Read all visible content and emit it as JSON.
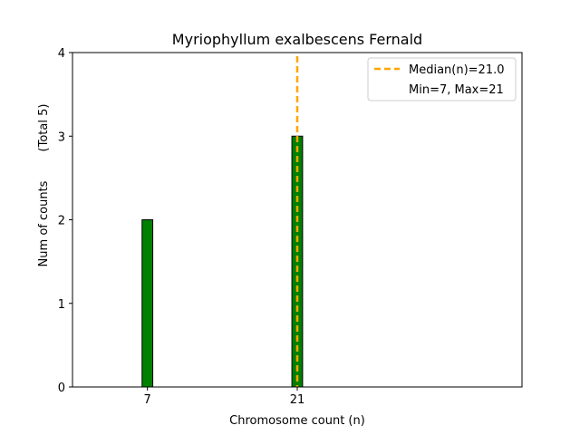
{
  "chart_data": {
    "type": "bar",
    "title": "Myriophyllum exalbescens Fernald",
    "xlabel": "Chromosome count (n)",
    "ylabel": "Num of counts",
    "ylabel_note": "(Total 5)",
    "x_ticks": [
      7,
      21
    ],
    "y_ticks": [
      0,
      1,
      2,
      3,
      4
    ],
    "xlim": [
      0,
      42
    ],
    "ylim": [
      0,
      4
    ],
    "bar_width": 1,
    "bars": [
      {
        "x": 7,
        "value": 2
      },
      {
        "x": 21,
        "value": 3
      }
    ],
    "baseline_x_extent": [
      0,
      24.5
    ],
    "median": 21.0,
    "legend": {
      "position": "top-right",
      "entries": [
        {
          "label": "Median(n)=21.0",
          "style": "dashed-line"
        },
        {
          "label": "Min=7, Max=21",
          "style": "none"
        }
      ]
    },
    "colors": {
      "bar_fill": "#008000",
      "bar_edge": "#000000",
      "median_line": "#FFA500",
      "baseline": "#1f77b4"
    }
  }
}
